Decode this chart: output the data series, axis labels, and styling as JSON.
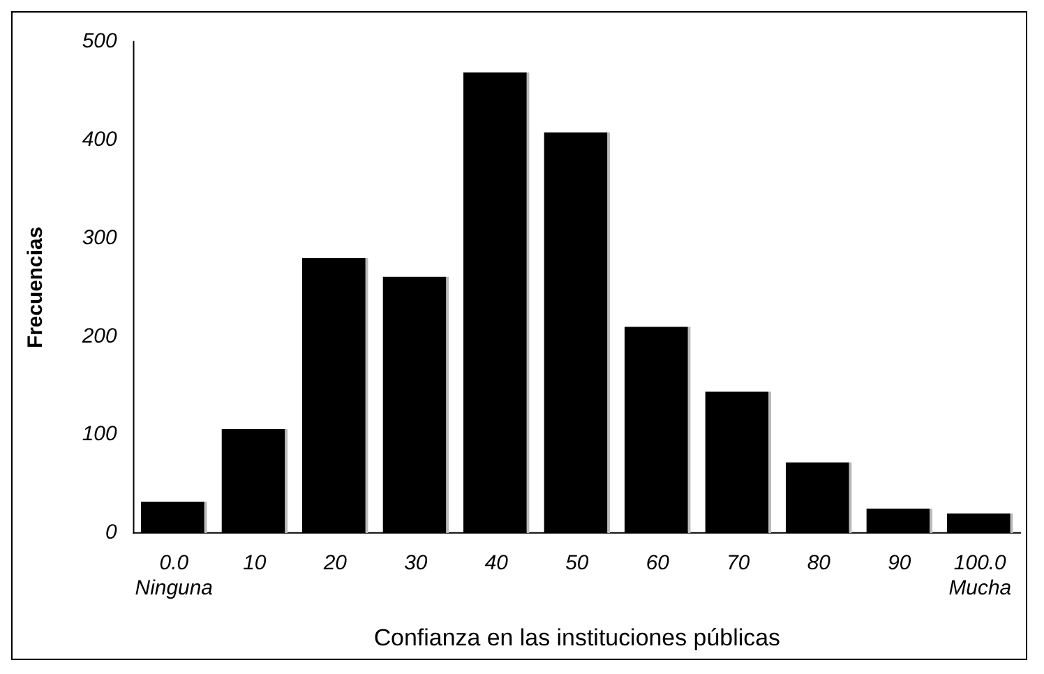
{
  "chart_data": {
    "type": "bar",
    "xlabel": "Confianza en las instituciones públicas",
    "ylabel": "Frecuencias",
    "categories": [
      "0.0\nNinguna",
      "10",
      "20",
      "30",
      "40",
      "50",
      "60",
      "70",
      "80",
      "90",
      "100.0\nMucha"
    ],
    "values": [
      32,
      106,
      280,
      261,
      469,
      408,
      210,
      144,
      72,
      25,
      20
    ],
    "color": "#000000",
    "ylim": [
      0,
      500
    ],
    "yticks": [
      0,
      100,
      200,
      300,
      400,
      500
    ],
    "grid": false,
    "legend": false
  }
}
